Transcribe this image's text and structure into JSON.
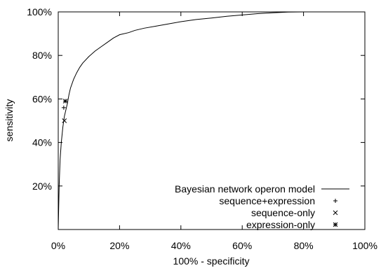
{
  "chart_data": {
    "type": "line",
    "title": "",
    "xlabel": "100% - specificity",
    "ylabel": "sensitivity",
    "xlim": [
      0,
      100
    ],
    "ylim": [
      0,
      100
    ],
    "x_ticks": [
      "0%",
      "20%",
      "40%",
      "60%",
      "80%",
      "100%"
    ],
    "y_ticks": [
      "20%",
      "40%",
      "60%",
      "80%",
      "100%"
    ],
    "grid": false,
    "legend_position": "bottom-right",
    "series": [
      {
        "name": "Bayesian network operon model",
        "kind": "line",
        "marker": "none",
        "x": [
          0,
          0.3,
          0.6,
          1.0,
          1.5,
          2.0,
          2.5,
          3.0,
          3.5,
          4.0,
          5.0,
          6.0,
          7.0,
          8.0,
          10.0,
          12.0,
          14.0,
          16.0,
          18.0,
          20.0,
          23.0,
          25.0,
          28.0,
          32.0,
          36.0,
          40.0,
          45.0,
          50.0,
          55.0,
          60.0,
          65.0,
          70.0,
          75.0,
          80.0,
          85.0,
          90.0,
          95.0,
          100.0
        ],
        "y": [
          0,
          20,
          32,
          40,
          47,
          52,
          55,
          58,
          62,
          65,
          69,
          72,
          74.5,
          76.5,
          79.5,
          82,
          84,
          86,
          88,
          89.5,
          90.5,
          91.5,
          92.5,
          93.5,
          94.5,
          95.5,
          96.5,
          97.2,
          98,
          98.6,
          99.2,
          99.6,
          99.9,
          100,
          100,
          100,
          100,
          100
        ]
      },
      {
        "name": "sequence+expression",
        "kind": "point",
        "marker": "plus",
        "x": [
          1.8
        ],
        "y": [
          56
        ]
      },
      {
        "name": "sequence-only",
        "kind": "point",
        "marker": "cross",
        "x": [
          2.0
        ],
        "y": [
          50
        ]
      },
      {
        "name": "expression-only",
        "kind": "point",
        "marker": "star",
        "x": [
          2.3
        ],
        "y": [
          59
        ]
      }
    ]
  }
}
